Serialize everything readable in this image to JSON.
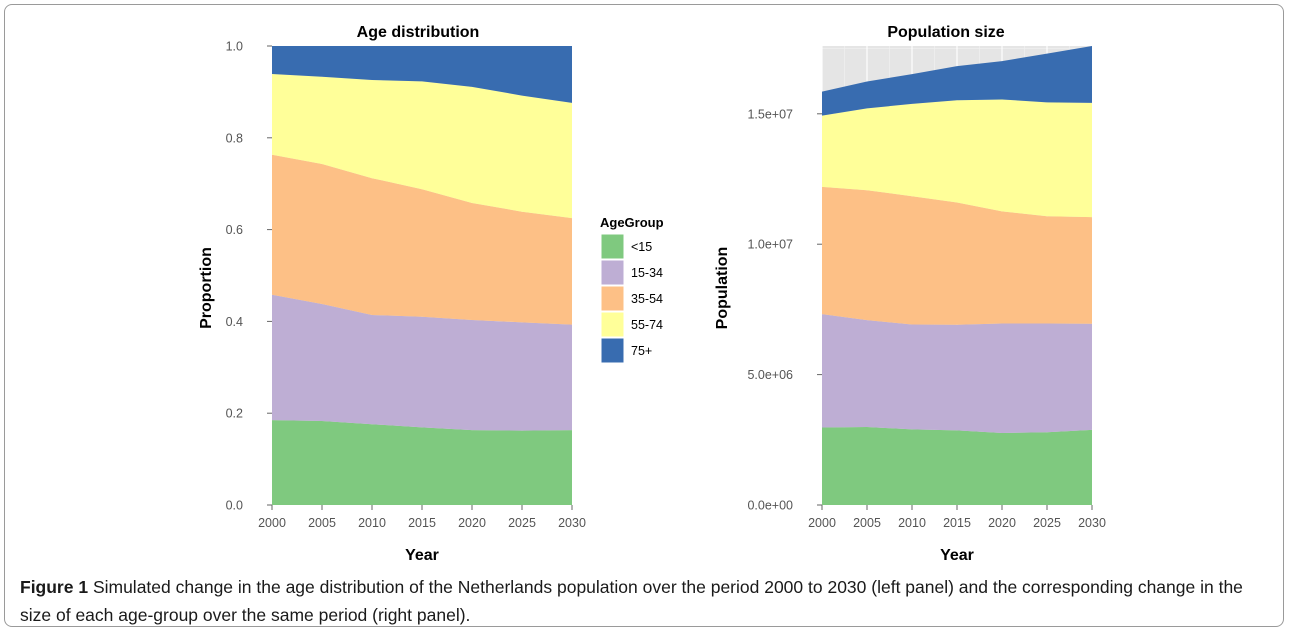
{
  "caption": {
    "label": "Figure 1",
    "text": " Simulated change in the age distribution of the Netherlands population over the period 2000 to 2030 (left panel) and the corresponding change in the size of each age-group over the same period (right panel)."
  },
  "legend": {
    "title": "AgeGroup",
    "placement": "between-panels",
    "items": [
      {
        "label": "<15",
        "color": "#7fc97f"
      },
      {
        "label": "15-34",
        "color": "#beaed4"
      },
      {
        "label": "35-54",
        "color": "#fdc086"
      },
      {
        "label": "55-74",
        "color": "#ffff99"
      },
      {
        "label": "75+",
        "color": "#386cb0"
      }
    ]
  },
  "chart_data": [
    {
      "type": "area",
      "stacked": true,
      "title": "Age distribution",
      "xlabel": "Year",
      "ylabel": "Proportion",
      "x": [
        2000,
        2005,
        2010,
        2015,
        2020,
        2025,
        2030
      ],
      "xticks": [
        "2000",
        "2005",
        "2010",
        "2015",
        "2020",
        "2025",
        "2030"
      ],
      "yticks": [
        "0.0",
        "0.2",
        "0.4",
        "0.6",
        "0.8",
        "1.0"
      ],
      "xlim": [
        2000,
        2030
      ],
      "ylim": [
        0,
        1.0
      ],
      "grid": true,
      "series": [
        {
          "name": "<15",
          "color": "#7fc97f",
          "values": [
            0.185,
            0.183,
            0.176,
            0.169,
            0.163,
            0.162,
            0.163
          ]
        },
        {
          "name": "15-34",
          "color": "#beaed4",
          "values": [
            0.273,
            0.255,
            0.238,
            0.241,
            0.24,
            0.236,
            0.23
          ]
        },
        {
          "name": "35-54",
          "color": "#fdc086",
          "values": [
            0.305,
            0.305,
            0.298,
            0.278,
            0.255,
            0.241,
            0.232
          ]
        },
        {
          "name": "55-74",
          "color": "#ffff99",
          "values": [
            0.176,
            0.19,
            0.214,
            0.235,
            0.253,
            0.253,
            0.251
          ]
        },
        {
          "name": "75+",
          "color": "#386cb0",
          "values": [
            0.061,
            0.067,
            0.074,
            0.077,
            0.089,
            0.108,
            0.124
          ]
        }
      ]
    },
    {
      "type": "area",
      "stacked": true,
      "title": "Population size",
      "xlabel": "Year",
      "ylabel": "Population",
      "x": [
        2000,
        2005,
        2010,
        2015,
        2020,
        2025,
        2030
      ],
      "xticks": [
        "2000",
        "2005",
        "2010",
        "2015",
        "2020",
        "2025",
        "2030"
      ],
      "yticks": [
        "0.0e+00",
        "5.0e+06",
        "1.0e+07",
        "1.5e+07"
      ],
      "xlim": [
        2000,
        2030
      ],
      "ylim": [
        0,
        17600000
      ],
      "grid": true,
      "series": [
        {
          "name": "<15",
          "color": "#7fc97f",
          "values": [
            2970000,
            2990000,
            2900000,
            2860000,
            2760000,
            2790000,
            2880000
          ]
        },
        {
          "name": "15-34",
          "color": "#beaed4",
          "values": [
            4350000,
            4100000,
            4020000,
            4050000,
            4200000,
            4170000,
            4070000
          ]
        },
        {
          "name": "35-54",
          "color": "#fdc086",
          "values": [
            4880000,
            4980000,
            4920000,
            4690000,
            4300000,
            4110000,
            4090000
          ]
        },
        {
          "name": "55-74",
          "color": "#ffff99",
          "values": [
            2730000,
            3140000,
            3540000,
            3920000,
            4290000,
            4370000,
            4380000
          ]
        },
        {
          "name": "75+",
          "color": "#386cb0",
          "values": [
            920000,
            1030000,
            1140000,
            1310000,
            1470000,
            1870000,
            2180000
          ]
        }
      ]
    }
  ]
}
